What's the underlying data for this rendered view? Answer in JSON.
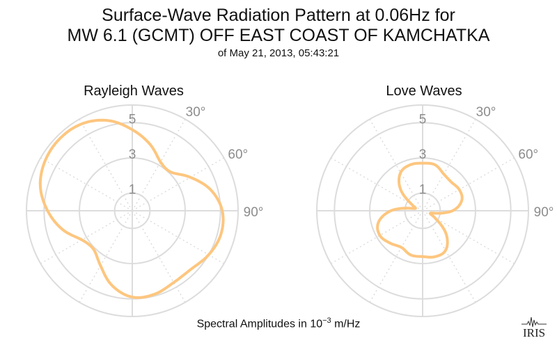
{
  "title": {
    "line1": "Surface-Wave Radiation Pattern at 0.06Hz for",
    "line2": "MW 6.1 (GCMT) OFF EAST COAST OF KAMCHATKA",
    "subtitle": "of May 21, 2013, 05:43:21"
  },
  "footer": {
    "prefix": "Spectral Amplitudes in 10",
    "exponent": "−3",
    "suffix": " m/Hz"
  },
  "logo_text": "IRIS",
  "colors": {
    "pattern": "#fdc67f",
    "grid": "#dcdcdc",
    "label": "#8c8c8c"
  },
  "chart_data": [
    {
      "type": "polar-line",
      "title": "Rayleigh Waves",
      "radial_ticks": [
        1,
        3,
        5
      ],
      "angle_ticks": [
        "30°",
        "60°",
        "90°"
      ],
      "rmax": 6,
      "series": [
        {
          "azimuth_deg": [
            0,
            15,
            30,
            45,
            60,
            75,
            90,
            105,
            120,
            135,
            150,
            165,
            180,
            195,
            210,
            225,
            240,
            255,
            270,
            285,
            300,
            315,
            330,
            345
          ],
          "amplitude": [
            4.6,
            3.9,
            3.2,
            3.1,
            3.8,
            4.6,
            5.1,
            5.2,
            5.0,
            4.7,
            4.7,
            4.9,
            4.9,
            4.4,
            3.6,
            3.1,
            3.3,
            4.1,
            4.8,
            5.4,
            5.7,
            5.8,
            5.7,
            5.3
          ]
        }
      ]
    },
    {
      "type": "polar-line",
      "title": "Love Waves",
      "radial_ticks": [
        1,
        3,
        5
      ],
      "angle_ticks": [
        "30°",
        "60°",
        "90°"
      ],
      "rmax": 6,
      "series": [
        {
          "azimuth_deg": [
            0,
            15,
            30,
            45,
            60,
            75,
            90,
            105,
            120,
            135,
            150,
            165,
            180,
            195,
            210,
            225,
            240,
            255,
            270,
            285,
            300,
            315,
            330,
            345
          ],
          "amplitude": [
            2.7,
            2.7,
            2.4,
            2.3,
            2.4,
            2.3,
            1.7,
            0.5,
            0.8,
            1.9,
            2.6,
            2.7,
            2.6,
            2.6,
            2.4,
            2.6,
            2.8,
            2.6,
            1.8,
            0.5,
            0.7,
            1.8,
            2.5,
            2.7
          ]
        }
      ]
    }
  ]
}
